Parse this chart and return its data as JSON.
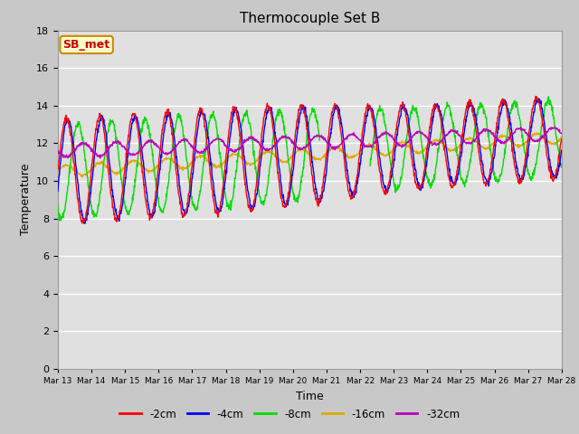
{
  "title": "Thermocouple Set B",
  "xlabel": "Time",
  "ylabel": "Temperature",
  "ylim": [
    0,
    18
  ],
  "yticks": [
    0,
    2,
    4,
    6,
    8,
    10,
    12,
    14,
    16,
    18
  ],
  "series_labels": [
    "-2cm",
    "-4cm",
    "-8cm",
    "-16cm",
    "-32cm"
  ],
  "series_colors": [
    "#ff0000",
    "#0000ff",
    "#00dd00",
    "#ddaa00",
    "#bb00bb"
  ],
  "annotation_text": "SB_met",
  "annotation_bgcolor": "#ffffcc",
  "annotation_edgecolor": "#cc8800",
  "annotation_textcolor": "#cc0000",
  "background_color": "#c8c8c8",
  "plot_bg_color": "#e0e0e0",
  "grid_color": "#ffffff",
  "title_fontsize": 11,
  "tick_days": [
    13,
    14,
    15,
    16,
    17,
    18,
    19,
    20,
    21,
    22,
    23,
    24,
    25,
    26,
    27,
    28
  ]
}
